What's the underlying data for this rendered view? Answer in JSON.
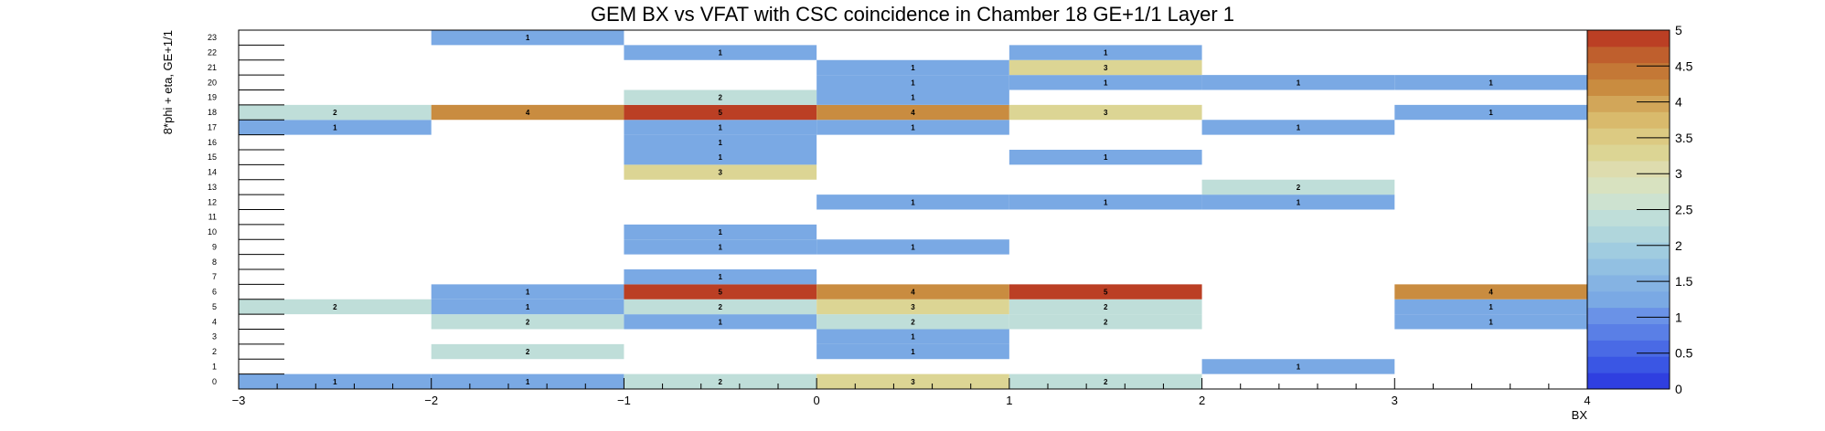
{
  "chart_data": {
    "type": "heatmap",
    "title": "GEM BX vs VFAT with CSC coincidence in Chamber 18 GE+1/1 Layer 1",
    "xlabel": "BX",
    "ylabel": "8*phi + eta, GE+1/1",
    "xlim": [
      -3,
      4
    ],
    "ylim": [
      0,
      24
    ],
    "zlim": [
      0,
      5
    ],
    "x_bin_edges": [
      -3,
      -2,
      -1,
      0,
      1,
      2,
      3,
      4
    ],
    "x_ticks": [
      "−3",
      "−2",
      "−1",
      "0",
      "1",
      "2",
      "3",
      "4"
    ],
    "y_ticks": [
      "0",
      "1",
      "2",
      "3",
      "4",
      "5",
      "6",
      "7",
      "8",
      "9",
      "10",
      "11",
      "12",
      "13",
      "14",
      "15",
      "16",
      "17",
      "18",
      "19",
      "20",
      "21",
      "22",
      "23"
    ],
    "z_ticks": [
      "0",
      "0.5",
      "1",
      "1.5",
      "2",
      "2.5",
      "3",
      "3.5",
      "4",
      "4.5",
      "5"
    ],
    "colors": {
      "v1": "#7aa9e4",
      "v2": "#bfded9",
      "v3": "#dcd594",
      "v4": "#c98c40",
      "v5": "#bb3f24"
    },
    "palette": [
      "#2f3fe0",
      "#3a56e4",
      "#4a6ae5",
      "#5a7fe6",
      "#6a92e7",
      "#7aa9e4",
      "#85b3e3",
      "#92c0e2",
      "#a0cce0",
      "#b0d6dc",
      "#bfded9",
      "#cde2d0",
      "#d8e2c0",
      "#dedcae",
      "#dcd594",
      "#dcca82",
      "#d9ba6c",
      "#d2a659",
      "#c98c40",
      "#c47836",
      "#bf5f2d",
      "#bb3f24"
    ],
    "cells": [
      {
        "bx": -2.5,
        "y": 0,
        "value": 1
      },
      {
        "bx": -1.5,
        "y": 0,
        "value": 1
      },
      {
        "bx": -0.5,
        "y": 0,
        "value": 2
      },
      {
        "bx": 0.5,
        "y": 0,
        "value": 3
      },
      {
        "bx": 1.5,
        "y": 0,
        "value": 2
      },
      {
        "bx": 2.5,
        "y": 1,
        "value": 1
      },
      {
        "bx": -1.5,
        "y": 2,
        "value": 2
      },
      {
        "bx": 0.5,
        "y": 2,
        "value": 1
      },
      {
        "bx": 0.5,
        "y": 3,
        "value": 1
      },
      {
        "bx": -1.5,
        "y": 4,
        "value": 2
      },
      {
        "bx": -0.5,
        "y": 4,
        "value": 1
      },
      {
        "bx": 0.5,
        "y": 4,
        "value": 2
      },
      {
        "bx": 1.5,
        "y": 4,
        "value": 2
      },
      {
        "bx": 3.5,
        "y": 4,
        "value": 1
      },
      {
        "bx": -2.5,
        "y": 5,
        "value": 2
      },
      {
        "bx": -1.5,
        "y": 5,
        "value": 1
      },
      {
        "bx": -0.5,
        "y": 5,
        "value": 2
      },
      {
        "bx": 0.5,
        "y": 5,
        "value": 3
      },
      {
        "bx": 1.5,
        "y": 5,
        "value": 2
      },
      {
        "bx": 3.5,
        "y": 5,
        "value": 1
      },
      {
        "bx": -1.5,
        "y": 6,
        "value": 1
      },
      {
        "bx": -0.5,
        "y": 6,
        "value": 5
      },
      {
        "bx": 0.5,
        "y": 6,
        "value": 4
      },
      {
        "bx": 1.5,
        "y": 6,
        "value": 5
      },
      {
        "bx": 3.5,
        "y": 6,
        "value": 4
      },
      {
        "bx": -0.5,
        "y": 7,
        "value": 1
      },
      {
        "bx": -0.5,
        "y": 9,
        "value": 1
      },
      {
        "bx": 0.5,
        "y": 9,
        "value": 1
      },
      {
        "bx": -0.5,
        "y": 10,
        "value": 1
      },
      {
        "bx": 0.5,
        "y": 12,
        "value": 1
      },
      {
        "bx": 1.5,
        "y": 12,
        "value": 1
      },
      {
        "bx": 2.5,
        "y": 12,
        "value": 1
      },
      {
        "bx": 2.5,
        "y": 13,
        "value": 2
      },
      {
        "bx": -0.5,
        "y": 14,
        "value": 3
      },
      {
        "bx": -0.5,
        "y": 15,
        "value": 1
      },
      {
        "bx": 1.5,
        "y": 15,
        "value": 1
      },
      {
        "bx": -0.5,
        "y": 16,
        "value": 1
      },
      {
        "bx": -2.5,
        "y": 17,
        "value": 1
      },
      {
        "bx": -0.5,
        "y": 17,
        "value": 1
      },
      {
        "bx": 0.5,
        "y": 17,
        "value": 1
      },
      {
        "bx": 2.5,
        "y": 17,
        "value": 1
      },
      {
        "bx": -2.5,
        "y": 18,
        "value": 2
      },
      {
        "bx": -1.5,
        "y": 18,
        "value": 4
      },
      {
        "bx": -0.5,
        "y": 18,
        "value": 5
      },
      {
        "bx": 0.5,
        "y": 18,
        "value": 4
      },
      {
        "bx": 1.5,
        "y": 18,
        "value": 3
      },
      {
        "bx": 3.5,
        "y": 18,
        "value": 1
      },
      {
        "bx": -0.5,
        "y": 19,
        "value": 2
      },
      {
        "bx": 0.5,
        "y": 19,
        "value": 1
      },
      {
        "bx": 0.5,
        "y": 20,
        "value": 1
      },
      {
        "bx": 1.5,
        "y": 20,
        "value": 1
      },
      {
        "bx": 2.5,
        "y": 20,
        "value": 1
      },
      {
        "bx": 3.5,
        "y": 20,
        "value": 1
      },
      {
        "bx": 0.5,
        "y": 21,
        "value": 1
      },
      {
        "bx": 1.5,
        "y": 21,
        "value": 3
      },
      {
        "bx": -0.5,
        "y": 22,
        "value": 1
      },
      {
        "bx": 1.5,
        "y": 22,
        "value": 1
      },
      {
        "bx": -1.5,
        "y": 23,
        "value": 1
      }
    ]
  }
}
